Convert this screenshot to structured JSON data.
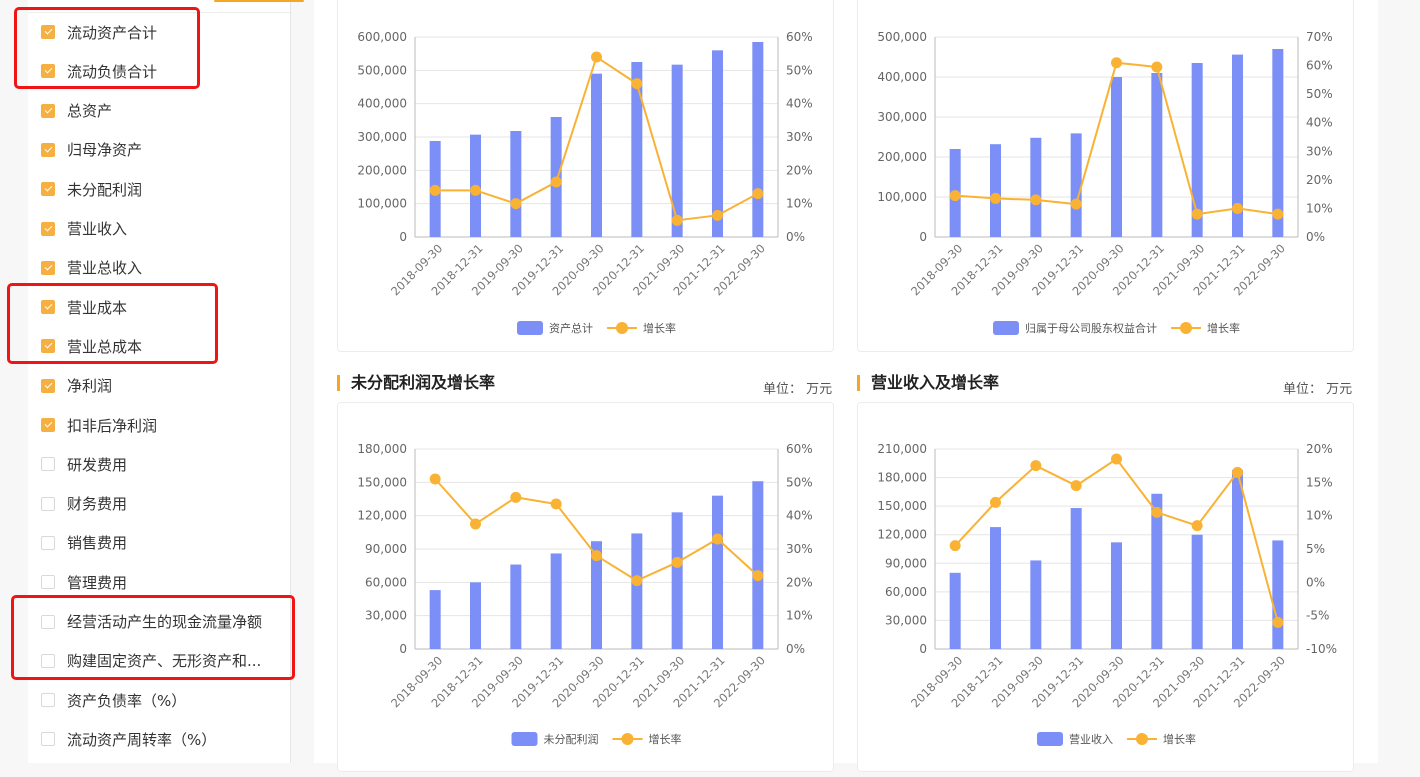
{
  "sidebar": {
    "items": [
      {
        "label": "流动资产合计",
        "checked": true
      },
      {
        "label": "流动负债合计",
        "checked": true
      },
      {
        "label": "总资产",
        "checked": true
      },
      {
        "label": "归母净资产",
        "checked": true
      },
      {
        "label": "未分配利润",
        "checked": true
      },
      {
        "label": "营业收入",
        "checked": true
      },
      {
        "label": "营业总收入",
        "checked": true
      },
      {
        "label": "营业成本",
        "checked": true
      },
      {
        "label": "营业总成本",
        "checked": true
      },
      {
        "label": "净利润",
        "checked": true
      },
      {
        "label": "扣非后净利润",
        "checked": true
      },
      {
        "label": "研发费用",
        "checked": false
      },
      {
        "label": "财务费用",
        "checked": false
      },
      {
        "label": "销售费用",
        "checked": false
      },
      {
        "label": "管理费用",
        "checked": false
      },
      {
        "label": "经营活动产生的现金流量净额",
        "checked": false
      },
      {
        "label": "购建固定资产、无形资产和...",
        "checked": false
      },
      {
        "label": "资产负债率（%）",
        "checked": false
      },
      {
        "label": "流动资产周转率（%）",
        "checked": false
      }
    ]
  },
  "colors": {
    "bar": "#7b8ff7",
    "line": "#f9b233",
    "accent": "#f5a623",
    "highlight": "#f01414"
  },
  "sections": {
    "c3": {
      "title": "未分配利润及增长率",
      "unit": "单位： 万元"
    },
    "c4": {
      "title": "营业收入及增长率",
      "unit": "单位： 万元"
    }
  },
  "chart_data": [
    {
      "type": "bar",
      "categories": [
        "2018-09-30",
        "2018-12-31",
        "2019-09-30",
        "2019-12-31",
        "2020-09-30",
        "2020-12-31",
        "2021-09-30",
        "2021-12-31",
        "2022-09-30"
      ],
      "series": [
        {
          "name": "资产总计",
          "type": "bar",
          "axis": "left",
          "values": [
            288000,
            307000,
            318000,
            360000,
            490000,
            525000,
            517000,
            560000,
            585000
          ]
        },
        {
          "name": "增长率",
          "type": "line",
          "axis": "right",
          "values": [
            14,
            14,
            10,
            16.5,
            54,
            46,
            5,
            6.5,
            13
          ]
        }
      ],
      "ylim_left": [
        0,
        600000
      ],
      "ylim_right": [
        0,
        60
      ],
      "yticks_left": [
        "0",
        "100,000",
        "200,000",
        "300,000",
        "400,000",
        "500,000",
        "600,000"
      ],
      "yticks_right": [
        "0%",
        "10%",
        "20%",
        "30%",
        "40%",
        "50%",
        "60%"
      ],
      "legend": "bottom"
    },
    {
      "type": "bar",
      "categories": [
        "2018-09-30",
        "2018-12-31",
        "2019-09-30",
        "2019-12-31",
        "2020-09-30",
        "2020-12-31",
        "2021-09-30",
        "2021-12-31",
        "2022-09-30"
      ],
      "series": [
        {
          "name": "归属于母公司股东权益合计",
          "type": "bar",
          "axis": "left",
          "values": [
            220000,
            232000,
            248000,
            259000,
            400000,
            410000,
            435000,
            456000,
            470000
          ]
        },
        {
          "name": "增长率",
          "type": "line",
          "axis": "right",
          "values": [
            14.5,
            13.5,
            13,
            11.5,
            61,
            59.5,
            8,
            10,
            8
          ]
        }
      ],
      "ylim_left": [
        0,
        500000
      ],
      "ylim_right": [
        0,
        70
      ],
      "yticks_left": [
        "0",
        "100,000",
        "200,000",
        "300,000",
        "400,000",
        "500,000"
      ],
      "yticks_right": [
        "0%",
        "10%",
        "20%",
        "30%",
        "40%",
        "50%",
        "60%",
        "70%"
      ],
      "legend": "bottom"
    },
    {
      "type": "bar",
      "categories": [
        "2018-09-30",
        "2018-12-31",
        "2019-09-30",
        "2019-12-31",
        "2020-09-30",
        "2020-12-31",
        "2021-09-30",
        "2021-12-31",
        "2022-09-30"
      ],
      "series": [
        {
          "name": "未分配利润",
          "type": "bar",
          "axis": "left",
          "values": [
            53000,
            60000,
            76000,
            86000,
            97000,
            104000,
            123000,
            138000,
            151000
          ]
        },
        {
          "name": "增长率",
          "type": "line",
          "axis": "right",
          "values": [
            51,
            37.5,
            45.5,
            43.5,
            28,
            20.5,
            26,
            33,
            22
          ]
        }
      ],
      "ylim_left": [
        0,
        180000
      ],
      "ylim_right": [
        0,
        60
      ],
      "yticks_left": [
        "0",
        "30,000",
        "60,000",
        "90,000",
        "120,000",
        "150,000",
        "180,000"
      ],
      "yticks_right": [
        "0%",
        "10%",
        "20%",
        "30%",
        "40%",
        "50%",
        "60%"
      ],
      "legend": "bottom"
    },
    {
      "type": "bar",
      "categories": [
        "2018-09-30",
        "2018-12-31",
        "2019-09-30",
        "2019-12-31",
        "2020-09-30",
        "2020-12-31",
        "2021-09-30",
        "2021-12-31",
        "2022-09-30"
      ],
      "series": [
        {
          "name": "营业收入",
          "type": "bar",
          "axis": "left",
          "values": [
            80000,
            128000,
            93000,
            148000,
            112000,
            163000,
            120000,
            188000,
            114000
          ]
        },
        {
          "name": "增长率",
          "type": "line",
          "axis": "right",
          "values": [
            5.5,
            12,
            17.5,
            14.5,
            18.5,
            10.5,
            8.5,
            16.5,
            -6
          ]
        }
      ],
      "ylim_left": [
        0,
        210000
      ],
      "ylim_right": [
        -10,
        20
      ],
      "yticks_left": [
        "0",
        "30,000",
        "60,000",
        "90,000",
        "120,000",
        "150,000",
        "180,000",
        "210,000"
      ],
      "yticks_right": [
        "-10%",
        "-5%",
        "0%",
        "5%",
        "10%",
        "15%",
        "20%"
      ],
      "legend": "bottom"
    }
  ]
}
